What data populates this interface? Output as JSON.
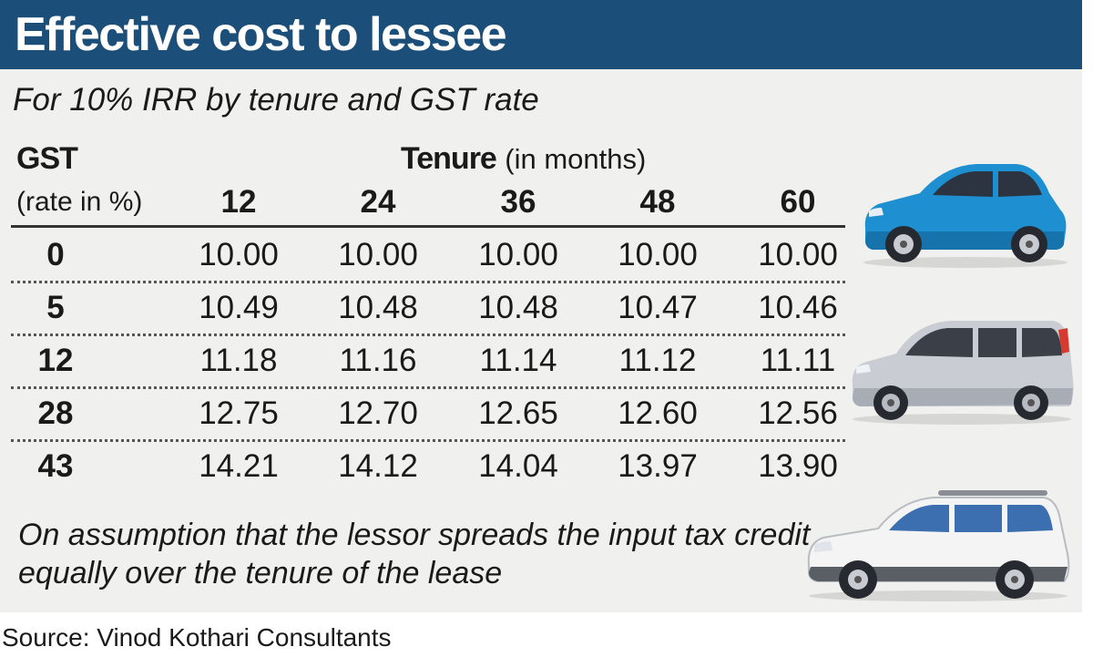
{
  "header": {
    "title": "Effective cost to lessee",
    "subtitle": "For 10% IRR by tenure and GST rate"
  },
  "table": {
    "row_header_title": "GST",
    "row_header_sub": "(rate in %)",
    "col_header_title": "Tenure",
    "col_header_unit": "(in months)",
    "columns": [
      "12",
      "24",
      "36",
      "48",
      "60"
    ],
    "rows": [
      {
        "gst": "0",
        "values": [
          "10.00",
          "10.00",
          "10.00",
          "10.00",
          "10.00"
        ]
      },
      {
        "gst": "5",
        "values": [
          "10.49",
          "10.48",
          "10.48",
          "10.47",
          "10.46"
        ]
      },
      {
        "gst": "12",
        "values": [
          "11.18",
          "11.16",
          "11.14",
          "11.12",
          "11.11"
        ]
      },
      {
        "gst": "28",
        "values": [
          "12.75",
          "12.70",
          "12.65",
          "12.60",
          "12.56"
        ]
      },
      {
        "gst": "43",
        "values": [
          "14.21",
          "14.12",
          "14.04",
          "13.97",
          "13.90"
        ]
      }
    ]
  },
  "footnote": "On assumption that the lessor spreads the input tax credit equally over the tenure of the lease",
  "source": "Source: Vinod Kothari Consultants",
  "colors": {
    "title_bar": "#1b4e78",
    "background": "#f0f0ee",
    "car_blue": "#1e8fd0",
    "car_silver": "#c9ccd2",
    "car_white": "#f4f4f4"
  },
  "illustrations": [
    "blue-hatchback-car",
    "silver-minivan-car",
    "white-suv-car"
  ]
}
